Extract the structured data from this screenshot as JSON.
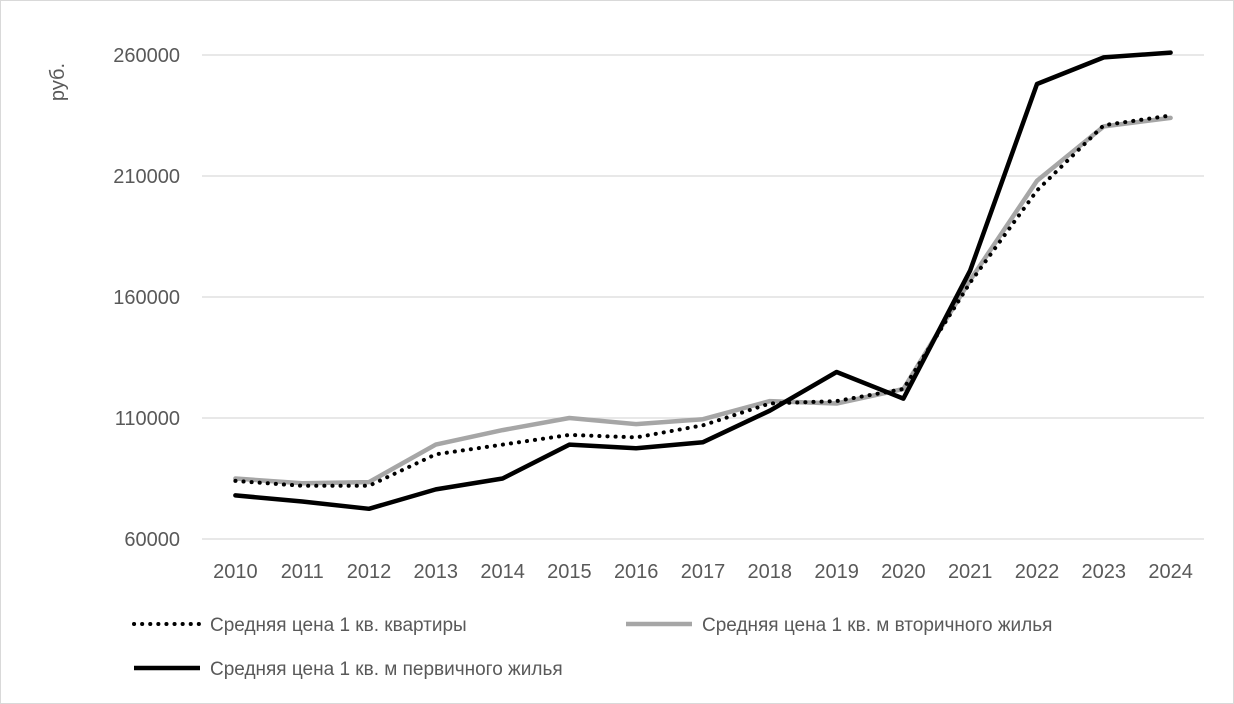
{
  "chart_data": {
    "type": "line",
    "title": "",
    "xlabel": "",
    "ylabel": "руб.",
    "ylim": [
      60000,
      260000
    ],
    "yticks": [
      60000,
      110000,
      160000,
      210000,
      260000
    ],
    "grid": true,
    "legend_position": "bottom",
    "categories": [
      "2010",
      "2011",
      "2012",
      "2013",
      "2014",
      "2015",
      "2016",
      "2017",
      "2018",
      "2019",
      "2020",
      "2021",
      "2022",
      "2023",
      "2024"
    ],
    "series": [
      {
        "name": "Средняя цена 1 кв. квартиры",
        "color": "#000000",
        "style": "dotted",
        "values": [
          84000,
          82000,
          82000,
          95000,
          99000,
          103000,
          102000,
          107000,
          116000,
          117000,
          122000,
          166000,
          204000,
          231000,
          235000
        ]
      },
      {
        "name": "Средняя цена 1 кв. м вторичного жилья",
        "color": "#a6a6a6",
        "style": "solid",
        "values": [
          85000,
          83000,
          83500,
          99000,
          105000,
          110000,
          107500,
          109500,
          117000,
          116000,
          122000,
          167000,
          208000,
          230500,
          234000
        ]
      },
      {
        "name": "Средняя цена 1 кв. м первичного жилья",
        "color": "#000000",
        "style": "solid",
        "values": [
          78000,
          75500,
          72500,
          80500,
          85000,
          99000,
          97500,
          100000,
          113000,
          129000,
          118000,
          171000,
          248000,
          259000,
          261000
        ]
      }
    ]
  }
}
